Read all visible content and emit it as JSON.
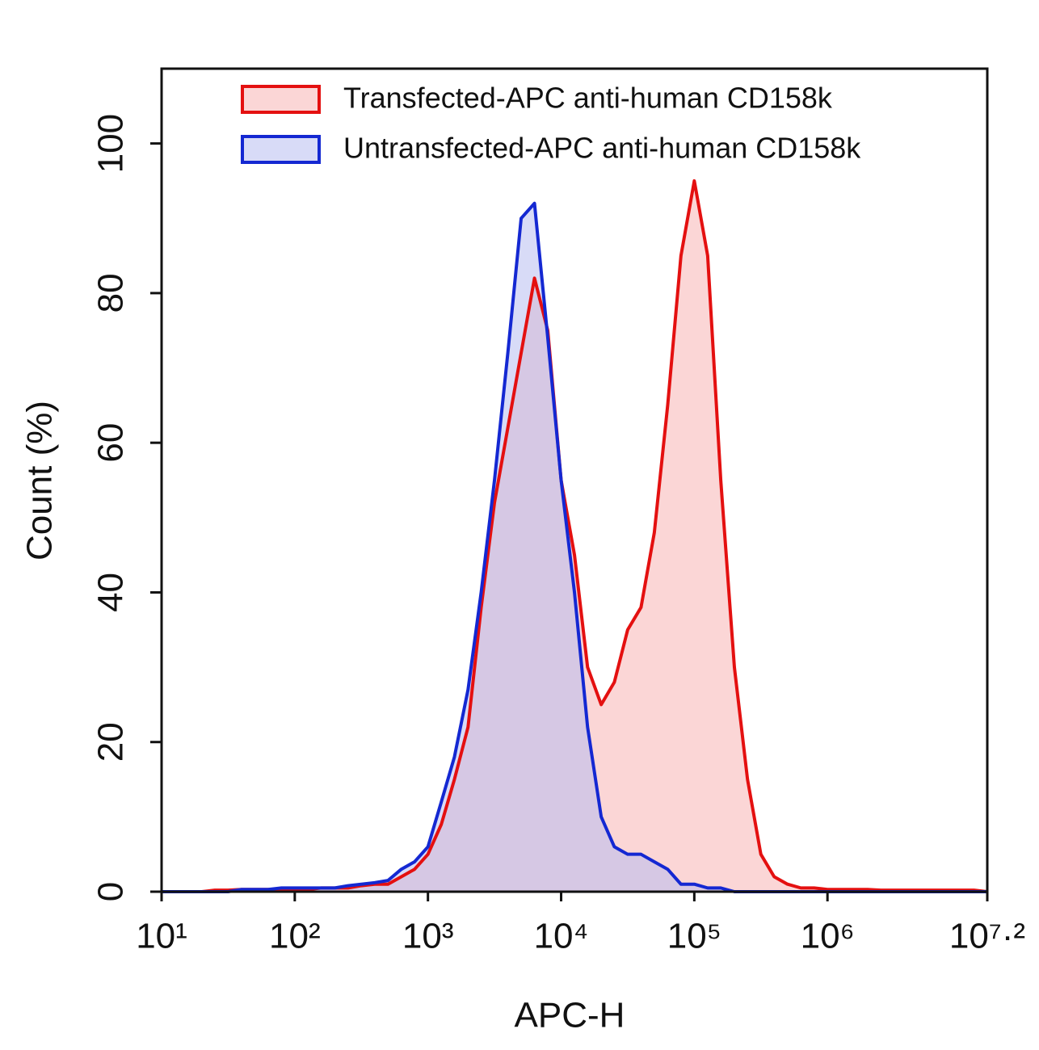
{
  "chart_data": {
    "type": "histogram-area",
    "x_label": "APC-H",
    "y_label": "Count (%)",
    "log_x": true,
    "xlim": [
      10,
      15848932
    ],
    "ylim": [
      0,
      110
    ],
    "xticks": [
      {
        "value": 10,
        "label": "10¹"
      },
      {
        "value": 100,
        "label": "10²"
      },
      {
        "value": 1000,
        "label": "10³"
      },
      {
        "value": 10000,
        "label": "10⁴"
      },
      {
        "value": 100000,
        "label": "10⁵"
      },
      {
        "value": 1000000,
        "label": "10⁶"
      },
      {
        "value": 15848932,
        "label": "10⁷·²"
      }
    ],
    "yticks": [
      0,
      20,
      40,
      60,
      80,
      100
    ],
    "legend": "upper left",
    "x": [
      10,
      12.6,
      15.8,
      20,
      25.1,
      31.6,
      39.8,
      50.1,
      63.1,
      79.4,
      100,
      126,
      158,
      200,
      251,
      316,
      398,
      501,
      631,
      794,
      1000,
      1260,
      1580,
      2000,
      2510,
      3160,
      3980,
      5010,
      6310,
      7940,
      10000,
      12600,
      15800,
      20000,
      25100,
      31600,
      39800,
      50100,
      63100,
      79400,
      100000,
      126000,
      158000,
      200000,
      251000,
      316000,
      398000,
      501000,
      631000,
      794000,
      1000000,
      1260000,
      1580000,
      2000000,
      2510000,
      3160000,
      3980000,
      5010000,
      6310000,
      7940000,
      10000000,
      12600000,
      15800000
    ],
    "series": [
      {
        "name": "Transfected-APC anti-human CD158k",
        "color": "#e41010",
        "fill": "#f7b4b4",
        "values": [
          0,
          0,
          0,
          0,
          0.2,
          0.2,
          0.3,
          0.3,
          0.3,
          0.3,
          0.3,
          0.3,
          0.5,
          0.5,
          0.5,
          0.8,
          1,
          1,
          2,
          3,
          5,
          9,
          15,
          22,
          38,
          52,
          62,
          72,
          82,
          75,
          55,
          45,
          30,
          25,
          28,
          35,
          38,
          48,
          65,
          85,
          95,
          85,
          55,
          30,
          15,
          5,
          2,
          1,
          0.5,
          0.5,
          0.3,
          0.3,
          0.3,
          0.3,
          0.2,
          0.2,
          0.2,
          0.2,
          0.2,
          0.2,
          0.2,
          0.2,
          0
        ]
      },
      {
        "name": "Untransfected-APC anti-human CD158k",
        "color": "#1428d2",
        "fill": "#b8bef0",
        "values": [
          0,
          0,
          0,
          0,
          0,
          0,
          0.3,
          0.3,
          0.3,
          0.5,
          0.5,
          0.5,
          0.5,
          0.5,
          0.8,
          1,
          1.2,
          1.5,
          3,
          4,
          6,
          12,
          18,
          27,
          40,
          55,
          72,
          90,
          92,
          74,
          55,
          40,
          22,
          10,
          6,
          5,
          5,
          4,
          3,
          1,
          1,
          0.5,
          0.5,
          0,
          0,
          0,
          0,
          0,
          0,
          0,
          0,
          0,
          0,
          0,
          0,
          0,
          0,
          0,
          0,
          0,
          0,
          0,
          0
        ]
      }
    ]
  }
}
